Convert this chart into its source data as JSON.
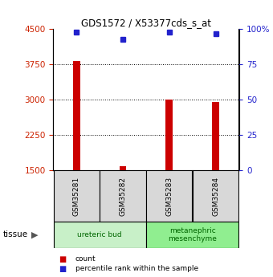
{
  "title": "GDS1572 / X53377cds_s_at",
  "samples": [
    "GSM35281",
    "GSM35282",
    "GSM35283",
    "GSM35284"
  ],
  "counts": [
    3820,
    1580,
    3010,
    2960
  ],
  "percentiles": [
    98,
    93,
    98,
    97
  ],
  "ymin": 1500,
  "ymax": 4500,
  "yticks": [
    1500,
    2250,
    3000,
    3750,
    4500
  ],
  "right_yticks": [
    0,
    25,
    50,
    75,
    100
  ],
  "bar_color": "#cc0000",
  "dot_color": "#2222cc",
  "tissue_groups": [
    {
      "label": "ureteric bud",
      "samples": [
        0,
        1
      ],
      "color": "#c8f0c8"
    },
    {
      "label": "metanephric\nmesenchyme",
      "samples": [
        2,
        3
      ],
      "color": "#90ee90"
    }
  ],
  "tissue_label": "tissue",
  "legend_items": [
    {
      "color": "#cc0000",
      "label": "count"
    },
    {
      "color": "#2222cc",
      "label": "percentile rank within the sample"
    }
  ],
  "left_tick_color": "#cc2200",
  "right_tick_color": "#2222cc",
  "gridline_vals": [
    2250,
    3000,
    3750
  ],
  "bar_width": 0.15
}
